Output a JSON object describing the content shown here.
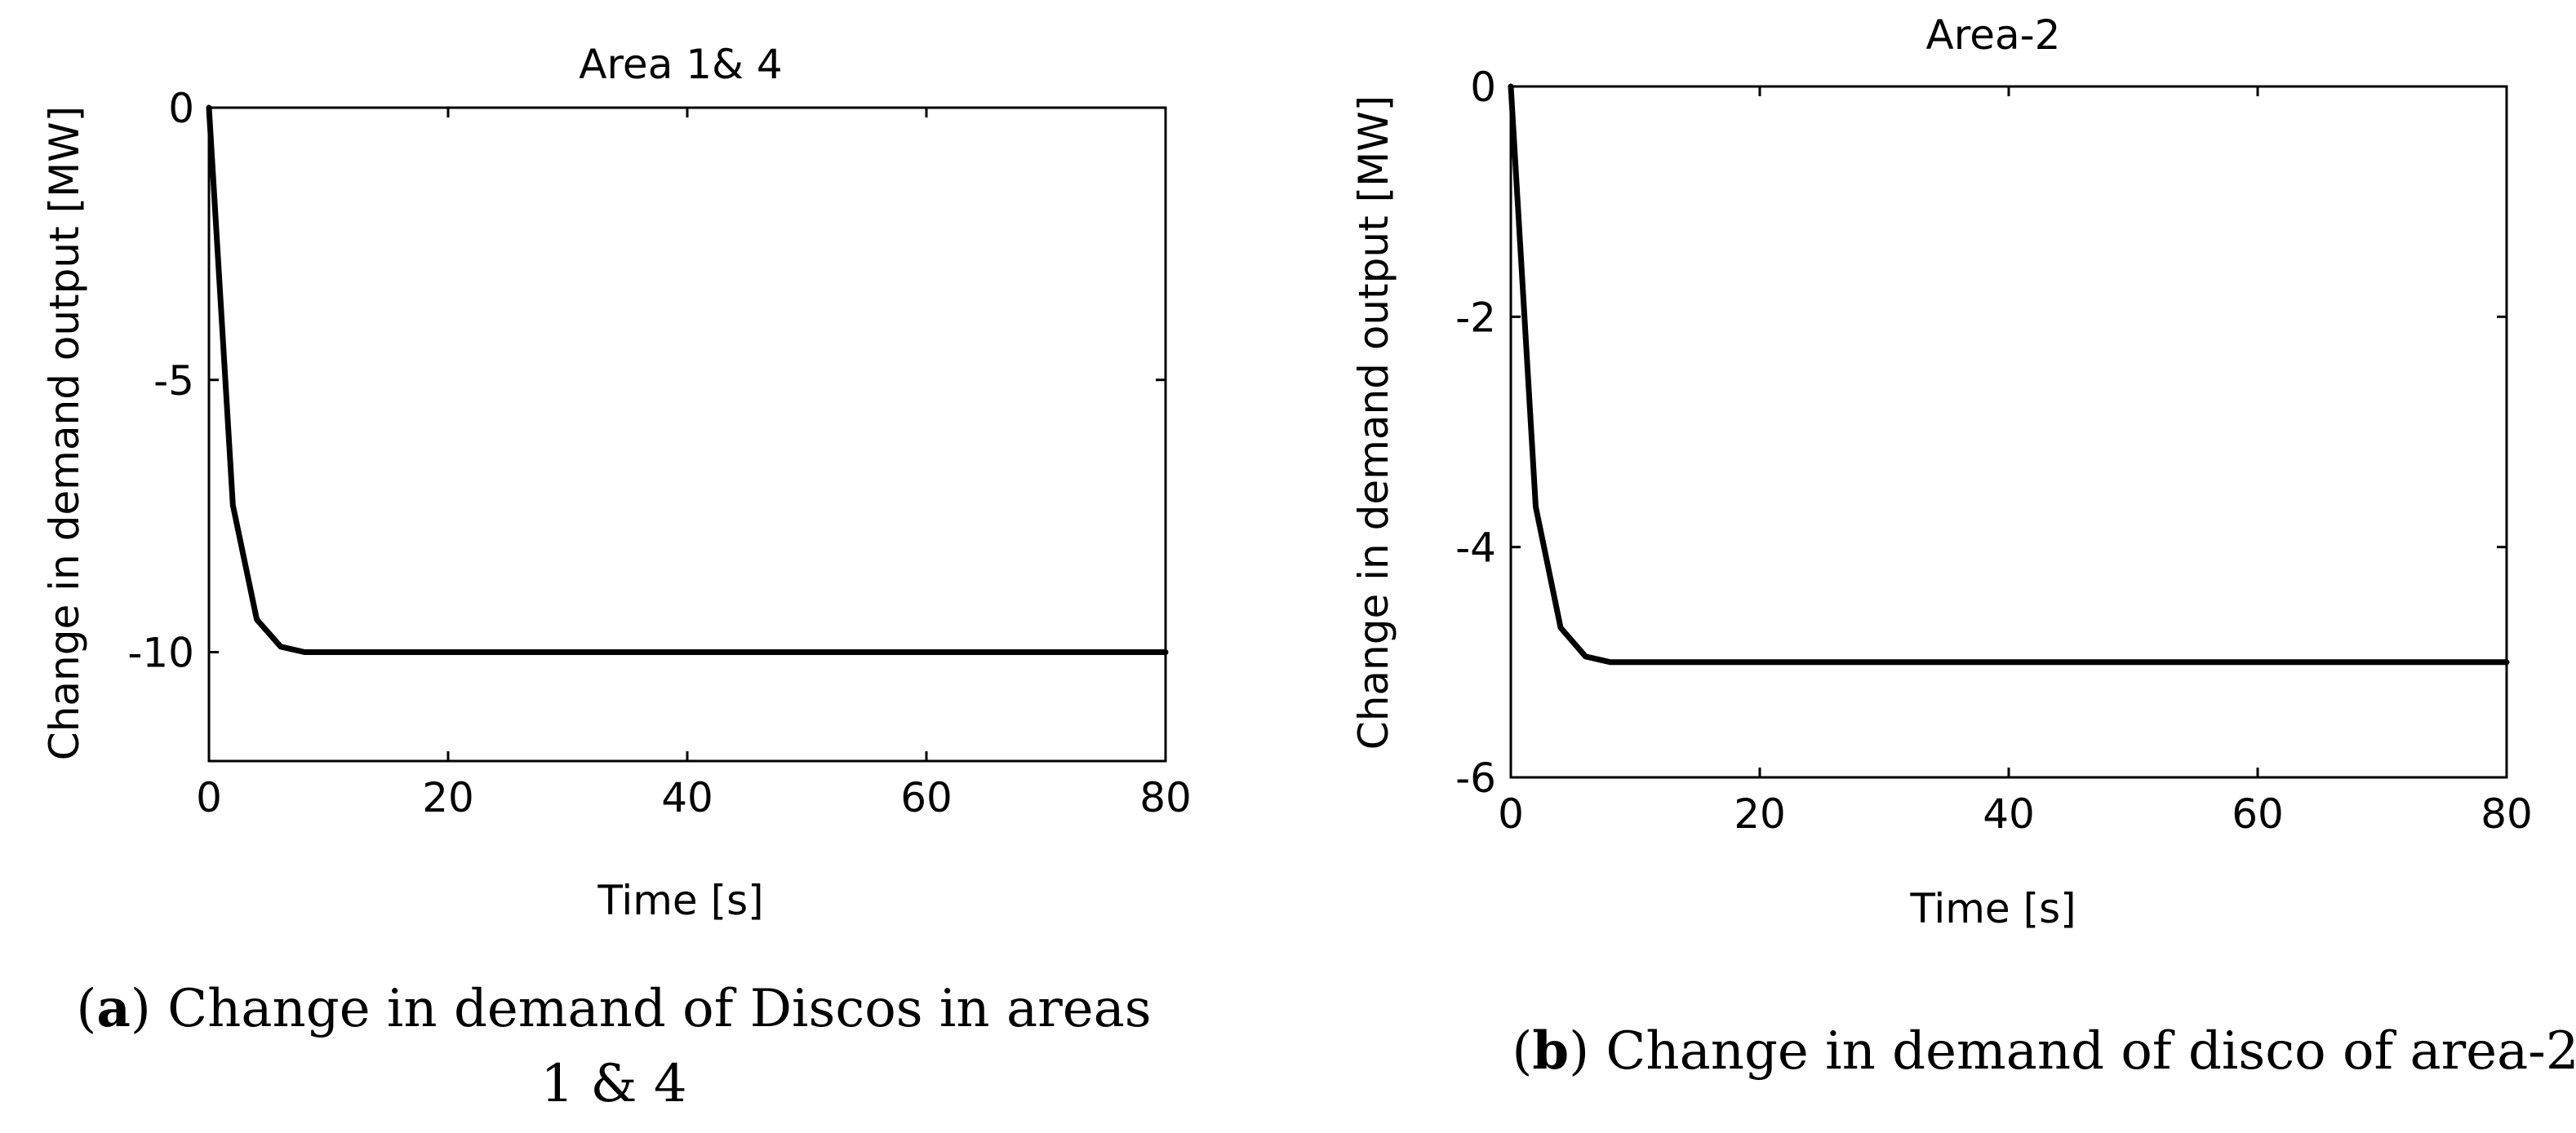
{
  "figure": {
    "panels": [
      {
        "caption_letter": "a",
        "caption_line1": ") Change in demand of Discos in areas",
        "caption_line2": "1 & 4"
      },
      {
        "caption_letter": "b",
        "caption_line1": ") Change in demand of disco of area-2",
        "caption_line2": ""
      }
    ]
  },
  "chart_data": [
    {
      "type": "line",
      "title": "Area 1& 4",
      "xlabel": "Time [s]",
      "ylabel": "Change in demand output [MW]",
      "xlim": [
        0,
        80
      ],
      "ylim": [
        -12,
        0
      ],
      "xticks": [
        0,
        20,
        40,
        60,
        80
      ],
      "yticks": [
        0,
        -5,
        -10
      ],
      "grid": false,
      "line_color": "#000000",
      "series": [
        {
          "x": [
            0,
            2,
            4,
            6,
            8,
            10,
            12,
            20,
            40,
            60,
            80
          ],
          "y": [
            0,
            -7.3,
            -9.4,
            -9.9,
            -10.0,
            -10.0,
            -10.0,
            -10.0,
            -10.0,
            -10.0,
            -10.0
          ]
        }
      ]
    },
    {
      "type": "line",
      "title": "Area-2",
      "xlabel": "Time [s]",
      "ylabel": "Change in demand output [MW]",
      "xlim": [
        0,
        80
      ],
      "ylim": [
        -6,
        0
      ],
      "xticks": [
        0,
        20,
        40,
        60,
        80
      ],
      "yticks": [
        0,
        -2,
        -4,
        -6
      ],
      "grid": false,
      "line_color": "#000000",
      "series": [
        {
          "x": [
            0,
            2,
            4,
            6,
            8,
            10,
            12,
            20,
            40,
            60,
            80
          ],
          "y": [
            0,
            -3.65,
            -4.7,
            -4.95,
            -5.0,
            -5.0,
            -5.0,
            -5.0,
            -5.0,
            -5.0,
            -5.0
          ]
        }
      ]
    }
  ]
}
